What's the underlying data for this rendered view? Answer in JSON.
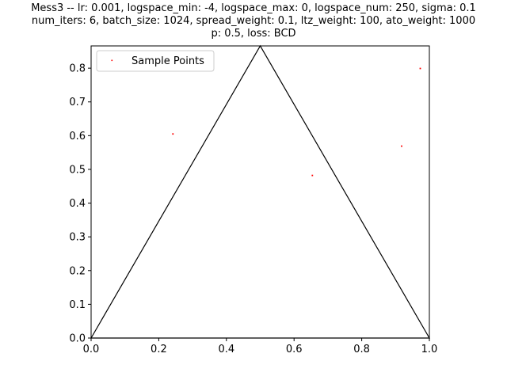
{
  "chart_data": {
    "type": "scatter",
    "title_lines": [
      "Mess3 -- lr: 0.001, logspace_min: -4, logspace_max: 0, logspace_num: 250, sigma: 0.1",
      "num_iters: 6, batch_size: 1024, spread_weight: 0.1, ltz_weight: 100, ato_weight: 1000",
      "p: 0.5, loss: BCD"
    ],
    "xlim": [
      0.0,
      1.0
    ],
    "ylim": [
      0.0,
      0.866
    ],
    "xticks": [
      0.0,
      0.2,
      0.4,
      0.6,
      0.8,
      1.0
    ],
    "xtick_labels": [
      "0.0",
      "0.2",
      "0.4",
      "0.6",
      "0.8",
      "1.0"
    ],
    "yticks": [
      0.0,
      0.1,
      0.2,
      0.3,
      0.4,
      0.5,
      0.6,
      0.7,
      0.8
    ],
    "ytick_labels": [
      "0.0",
      "0.1",
      "0.2",
      "0.3",
      "0.4",
      "0.5",
      "0.6",
      "0.7",
      "0.8"
    ],
    "grid": false,
    "legend_position": "top-left",
    "triangle": [
      [
        0.0,
        0.0
      ],
      [
        0.5,
        0.866
      ],
      [
        1.0,
        0.0
      ]
    ],
    "triangle_color": "#000000",
    "series": [
      {
        "name": "Sample Points",
        "color": "#ff0000",
        "points": [
          [
            0.242,
            0.605
          ],
          [
            0.654,
            0.482
          ],
          [
            0.918,
            0.569
          ],
          [
            0.973,
            0.799
          ]
        ]
      }
    ]
  }
}
